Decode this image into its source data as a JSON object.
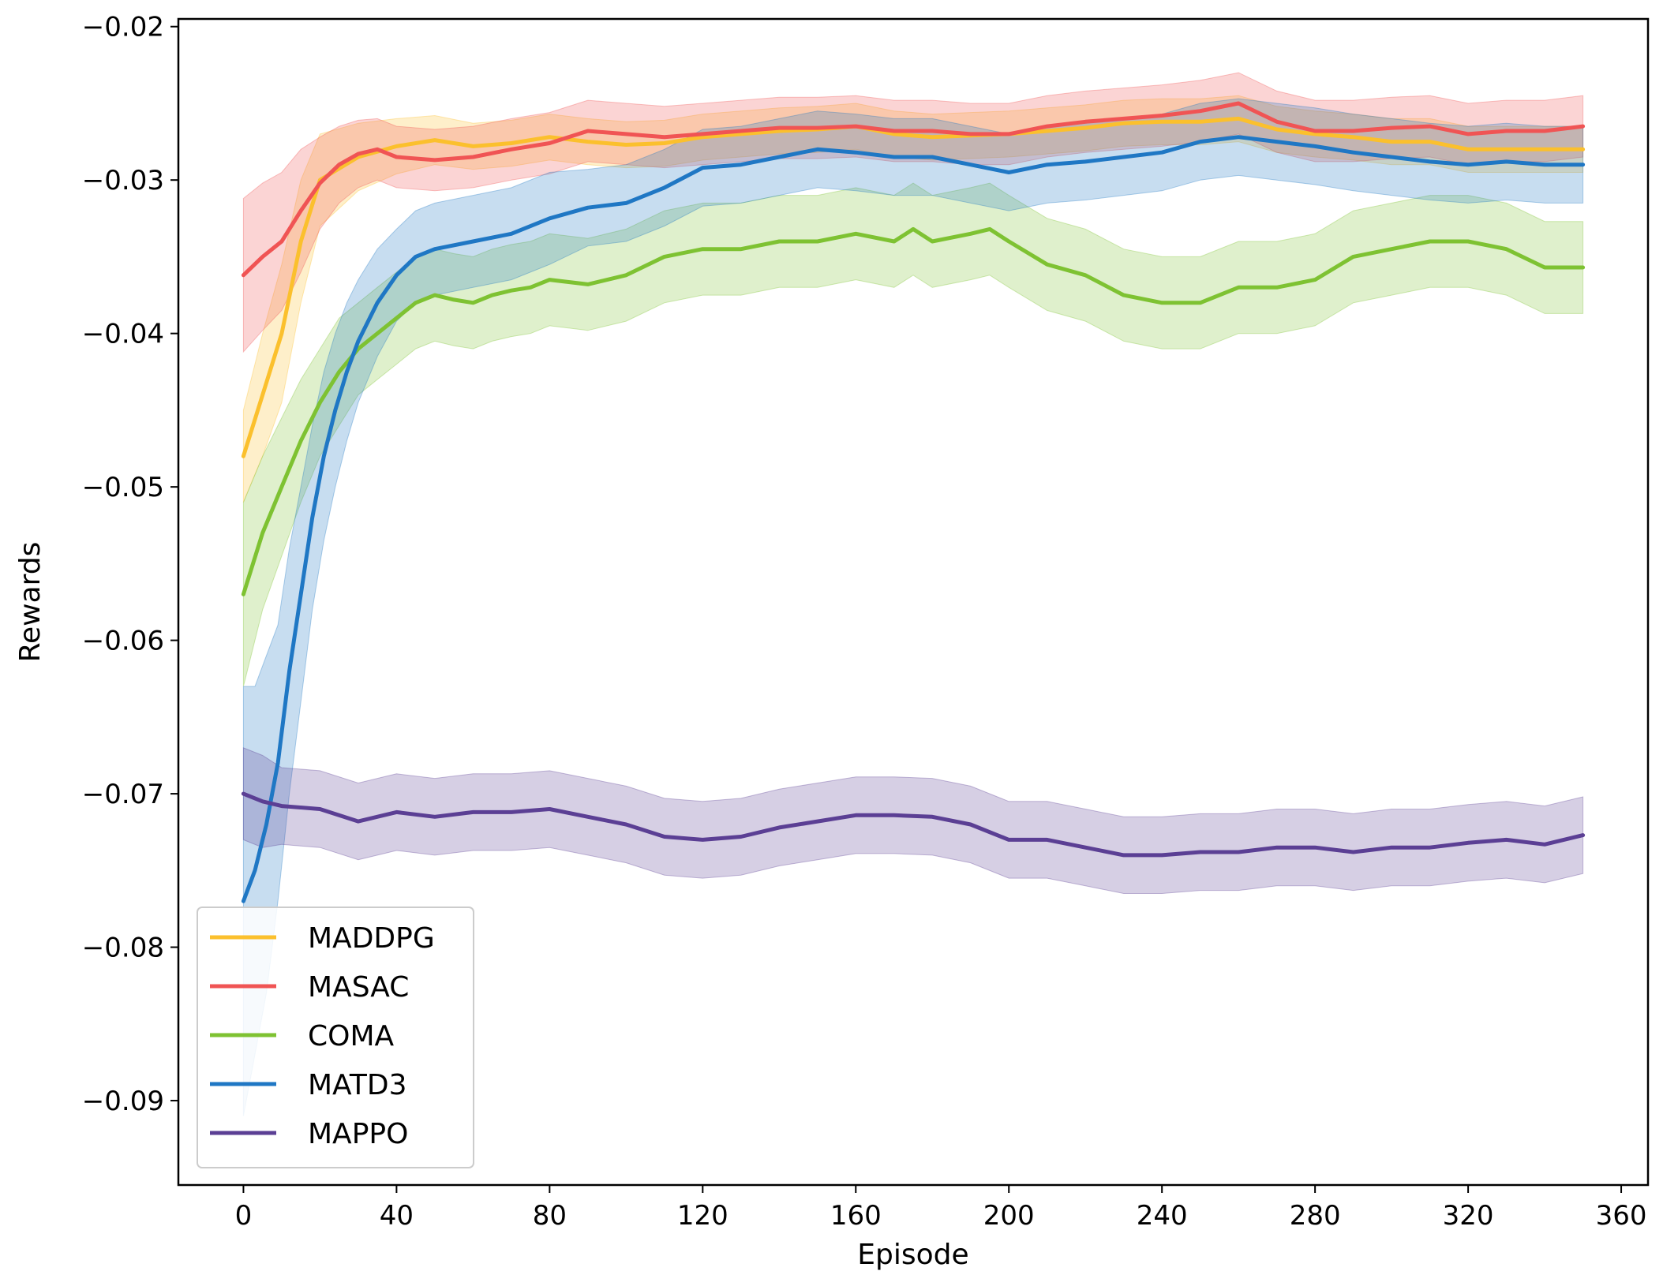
{
  "chart_data": {
    "type": "line",
    "xlabel": "Episode",
    "ylabel": "Rewards",
    "xlim": [
      -17,
      367
    ],
    "ylim": [
      -0.0955,
      -0.0195
    ],
    "xticks": [
      0,
      40,
      80,
      120,
      160,
      200,
      240,
      280,
      320,
      360
    ],
    "xtick_labels": [
      "0",
      "40",
      "80",
      "120",
      "160",
      "200",
      "240",
      "280",
      "320",
      "360"
    ],
    "yticks": [
      -0.02,
      -0.03,
      -0.04,
      -0.05,
      -0.06,
      -0.07,
      -0.08,
      -0.09
    ],
    "ytick_labels": [
      "−0.02",
      "−0.03",
      "−0.04",
      "−0.05",
      "−0.06",
      "−0.07",
      "−0.08",
      "−0.09"
    ],
    "legend_position": "lower-left",
    "grid": false,
    "band_opacity": 0.25,
    "series": [
      {
        "name": "MADDPG",
        "color": "#fbc02d",
        "x": [
          0,
          5,
          10,
          15,
          20,
          30,
          40,
          50,
          60,
          70,
          80,
          90,
          100,
          110,
          120,
          130,
          140,
          150,
          160,
          170,
          180,
          190,
          200,
          210,
          220,
          230,
          240,
          250,
          260,
          270,
          280,
          290,
          300,
          310,
          320,
          330,
          340,
          350
        ],
        "y": [
          -0.048,
          -0.044,
          -0.04,
          -0.034,
          -0.03,
          -0.0285,
          -0.0278,
          -0.0274,
          -0.0278,
          -0.0276,
          -0.0272,
          -0.0275,
          -0.0277,
          -0.0276,
          -0.0272,
          -0.027,
          -0.0268,
          -0.0267,
          -0.0265,
          -0.027,
          -0.0272,
          -0.0271,
          -0.027,
          -0.0268,
          -0.0266,
          -0.0263,
          -0.0262,
          -0.0262,
          -0.026,
          -0.0267,
          -0.027,
          -0.0272,
          -0.0275,
          -0.0275,
          -0.028,
          -0.028,
          -0.028,
          -0.028
        ],
        "spread": [
          0.003,
          0.004,
          0.0045,
          0.004,
          0.003,
          0.0022,
          0.0018,
          0.0016,
          0.0015,
          0.0015,
          0.0015,
          0.0015,
          0.0015,
          0.0015,
          0.0015,
          0.0015,
          0.0015,
          0.0015,
          0.0015,
          0.0015,
          0.0015,
          0.0015,
          0.0015,
          0.0015,
          0.0015,
          0.0015,
          0.0015,
          0.0015,
          0.0015,
          0.0015,
          0.0015,
          0.0015,
          0.0015,
          0.0015,
          0.0015,
          0.0015,
          0.0015,
          0.0015
        ]
      },
      {
        "name": "MASAC",
        "color": "#f05454",
        "x": [
          0,
          5,
          10,
          15,
          20,
          25,
          30,
          35,
          40,
          50,
          60,
          70,
          80,
          90,
          100,
          110,
          120,
          130,
          140,
          150,
          160,
          170,
          180,
          190,
          200,
          210,
          220,
          230,
          240,
          250,
          260,
          270,
          280,
          290,
          300,
          310,
          320,
          330,
          340,
          350
        ],
        "y": [
          -0.0362,
          -0.035,
          -0.034,
          -0.032,
          -0.0302,
          -0.029,
          -0.0283,
          -0.028,
          -0.0285,
          -0.0287,
          -0.0285,
          -0.028,
          -0.0276,
          -0.0268,
          -0.027,
          -0.0272,
          -0.027,
          -0.0268,
          -0.0266,
          -0.0266,
          -0.0265,
          -0.0268,
          -0.0268,
          -0.027,
          -0.027,
          -0.0265,
          -0.0262,
          -0.026,
          -0.0258,
          -0.0255,
          -0.025,
          -0.0262,
          -0.0268,
          -0.0268,
          -0.0266,
          -0.0265,
          -0.027,
          -0.0268,
          -0.0268,
          -0.0265
        ],
        "spread": [
          0.005,
          0.0048,
          0.0045,
          0.004,
          0.003,
          0.0025,
          0.0022,
          0.002,
          0.002,
          0.002,
          0.002,
          0.002,
          0.002,
          0.002,
          0.002,
          0.002,
          0.002,
          0.002,
          0.002,
          0.002,
          0.002,
          0.002,
          0.002,
          0.002,
          0.002,
          0.002,
          0.002,
          0.002,
          0.002,
          0.002,
          0.002,
          0.002,
          0.002,
          0.002,
          0.002,
          0.002,
          0.002,
          0.002,
          0.002,
          0.002
        ]
      },
      {
        "name": "COMA",
        "color": "#7ec232",
        "x": [
          0,
          5,
          10,
          15,
          20,
          25,
          30,
          35,
          40,
          45,
          50,
          55,
          60,
          65,
          70,
          75,
          80,
          90,
          100,
          110,
          120,
          130,
          140,
          150,
          160,
          170,
          175,
          180,
          190,
          195,
          200,
          210,
          220,
          230,
          240,
          250,
          260,
          270,
          280,
          290,
          300,
          310,
          320,
          330,
          340,
          350
        ],
        "y": [
          -0.057,
          -0.053,
          -0.05,
          -0.047,
          -0.0445,
          -0.0425,
          -0.041,
          -0.04,
          -0.039,
          -0.038,
          -0.0375,
          -0.0378,
          -0.038,
          -0.0375,
          -0.0372,
          -0.037,
          -0.0365,
          -0.0368,
          -0.0362,
          -0.035,
          -0.0345,
          -0.0345,
          -0.034,
          -0.034,
          -0.0335,
          -0.034,
          -0.0332,
          -0.034,
          -0.0335,
          -0.0332,
          -0.034,
          -0.0355,
          -0.0362,
          -0.0375,
          -0.038,
          -0.038,
          -0.037,
          -0.037,
          -0.0365,
          -0.035,
          -0.0345,
          -0.034,
          -0.034,
          -0.0345,
          -0.0357,
          -0.0357
        ],
        "spread": [
          0.006,
          0.005,
          0.0045,
          0.004,
          0.0035,
          0.0035,
          0.003,
          0.003,
          0.003,
          0.003,
          0.003,
          0.003,
          0.003,
          0.003,
          0.003,
          0.003,
          0.003,
          0.003,
          0.003,
          0.003,
          0.003,
          0.003,
          0.003,
          0.003,
          0.003,
          0.003,
          0.003,
          0.003,
          0.003,
          0.003,
          0.003,
          0.003,
          0.003,
          0.003,
          0.003,
          0.003,
          0.003,
          0.003,
          0.003,
          0.003,
          0.003,
          0.003,
          0.003,
          0.003,
          0.003,
          0.003
        ]
      },
      {
        "name": "MATD3",
        "color": "#1f77c4",
        "x": [
          0,
          3,
          6,
          9,
          12,
          15,
          18,
          21,
          24,
          27,
          30,
          35,
          40,
          45,
          50,
          60,
          70,
          80,
          90,
          100,
          110,
          120,
          130,
          140,
          150,
          160,
          170,
          180,
          190,
          200,
          210,
          220,
          230,
          240,
          250,
          260,
          270,
          280,
          290,
          300,
          310,
          320,
          330,
          340,
          350
        ],
        "y": [
          -0.077,
          -0.075,
          -0.072,
          -0.068,
          -0.062,
          -0.057,
          -0.052,
          -0.048,
          -0.045,
          -0.0425,
          -0.0405,
          -0.038,
          -0.0362,
          -0.035,
          -0.0345,
          -0.034,
          -0.0335,
          -0.0325,
          -0.0318,
          -0.0315,
          -0.0305,
          -0.0292,
          -0.029,
          -0.0285,
          -0.028,
          -0.0282,
          -0.0285,
          -0.0285,
          -0.029,
          -0.0295,
          -0.029,
          -0.0288,
          -0.0285,
          -0.0282,
          -0.0275,
          -0.0272,
          -0.0275,
          -0.0278,
          -0.0282,
          -0.0285,
          -0.0288,
          -0.029,
          -0.0288,
          -0.029,
          -0.029
        ],
        "spread": [
          0.014,
          0.012,
          0.011,
          0.009,
          0.008,
          0.007,
          0.006,
          0.0055,
          0.005,
          0.0045,
          0.004,
          0.0035,
          0.003,
          0.003,
          0.003,
          0.003,
          0.003,
          0.003,
          0.0025,
          0.0025,
          0.0025,
          0.0025,
          0.0025,
          0.0025,
          0.0025,
          0.0025,
          0.0025,
          0.0025,
          0.0025,
          0.0025,
          0.0025,
          0.0025,
          0.0025,
          0.0025,
          0.0025,
          0.0025,
          0.0025,
          0.0025,
          0.0025,
          0.0025,
          0.0025,
          0.0025,
          0.0025,
          0.0025,
          0.0025
        ]
      },
      {
        "name": "MAPPO",
        "color": "#5b3f94",
        "x": [
          0,
          5,
          10,
          20,
          30,
          40,
          50,
          60,
          70,
          80,
          90,
          100,
          110,
          120,
          130,
          140,
          150,
          160,
          170,
          180,
          190,
          200,
          210,
          220,
          230,
          240,
          250,
          260,
          270,
          280,
          290,
          300,
          310,
          320,
          330,
          340,
          350
        ],
        "y": [
          -0.07,
          -0.0705,
          -0.0708,
          -0.071,
          -0.0718,
          -0.0712,
          -0.0715,
          -0.0712,
          -0.0712,
          -0.071,
          -0.0715,
          -0.072,
          -0.0728,
          -0.073,
          -0.0728,
          -0.0722,
          -0.0718,
          -0.0714,
          -0.0714,
          -0.0715,
          -0.072,
          -0.073,
          -0.073,
          -0.0735,
          -0.074,
          -0.074,
          -0.0738,
          -0.0738,
          -0.0735,
          -0.0735,
          -0.0738,
          -0.0735,
          -0.0735,
          -0.0732,
          -0.073,
          -0.0733,
          -0.0727
        ],
        "spread": [
          0.003,
          0.003,
          0.0025,
          0.0025,
          0.0025,
          0.0025,
          0.0025,
          0.0025,
          0.0025,
          0.0025,
          0.0025,
          0.0025,
          0.0025,
          0.0025,
          0.0025,
          0.0025,
          0.0025,
          0.0025,
          0.0025,
          0.0025,
          0.0025,
          0.0025,
          0.0025,
          0.0025,
          0.0025,
          0.0025,
          0.0025,
          0.0025,
          0.0025,
          0.0025,
          0.0025,
          0.0025,
          0.0025,
          0.0025,
          0.0025,
          0.0025,
          0.0025
        ]
      }
    ]
  }
}
